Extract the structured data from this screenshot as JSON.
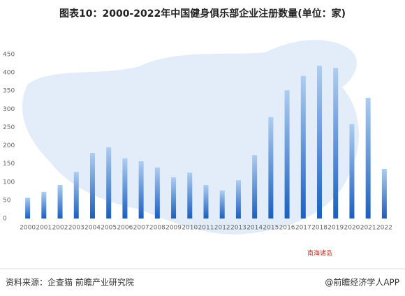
{
  "chart_data": {
    "type": "bar",
    "title": "图表10：2000-2022年中国健身俱乐部企业注册数量(单位：家)",
    "categories": [
      "2000",
      "2001",
      "2002",
      "2003",
      "2004",
      "2005",
      "2006",
      "2007",
      "2008",
      "2009",
      "2010",
      "2011",
      "2012",
      "2013",
      "2014",
      "2015",
      "2016",
      "2017",
      "2018",
      "2019",
      "2020",
      "2021",
      "2022"
    ],
    "values": [
      57,
      73,
      92,
      128,
      180,
      195,
      165,
      157,
      140,
      113,
      126,
      92,
      77,
      105,
      174,
      278,
      352,
      391,
      419,
      413,
      259,
      331,
      136
    ],
    "color": "#1a5fc0",
    "top_color": "#aecdf0",
    "ylim": [
      0,
      450
    ],
    "yticks": [
      0,
      50,
      100,
      150,
      200,
      250,
      300,
      350,
      400,
      450
    ],
    "grid": false
  },
  "map_label": "南海诸岛",
  "source": "资料来源：企查猫 前瞻产业研究院",
  "credit": "@前瞻经济学人APP"
}
